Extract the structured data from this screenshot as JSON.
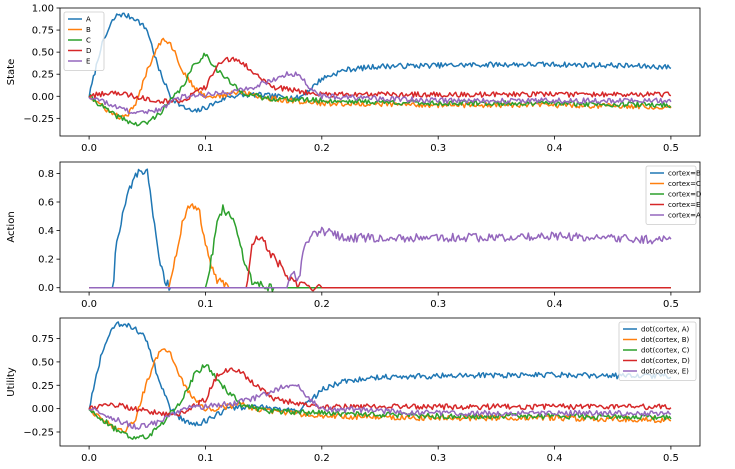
{
  "figure": {
    "colors": [
      "#1f77b4",
      "#ff7f0e",
      "#2ca02c",
      "#d62728",
      "#9467bd"
    ]
  },
  "chart_data": [
    {
      "type": "line",
      "ylabel": "State",
      "xlim": [
        -0.025,
        0.525
      ],
      "ylim": [
        -0.45,
        1.0
      ],
      "xticks": [
        0.0,
        0.1,
        0.2,
        0.3,
        0.4,
        0.5
      ],
      "xtick_labels": [
        "0.0",
        "0.1",
        "0.2",
        "0.3",
        "0.4",
        "0.5"
      ],
      "yticks": [
        -0.25,
        0.0,
        0.25,
        0.5,
        0.75,
        1.0
      ],
      "ytick_labels": [
        "−0.25",
        "0.00",
        "0.25",
        "0.50",
        "0.75",
        "1.00"
      ],
      "legend_position": "upper-left",
      "series": [
        {
          "name": "A",
          "x": [
            0,
            0.01,
            0.02,
            0.025,
            0.03,
            0.04,
            0.05,
            0.06,
            0.07,
            0.08,
            0.09,
            0.1,
            0.12,
            0.14,
            0.16,
            0.18,
            0.19,
            0.2,
            0.22,
            0.25,
            0.3,
            0.35,
            0.4,
            0.45,
            0.5
          ],
          "y": [
            0,
            0.55,
            0.85,
            0.93,
            0.92,
            0.88,
            0.75,
            0.3,
            0.0,
            -0.12,
            -0.18,
            -0.13,
            0.0,
            0.02,
            0.0,
            -0.02,
            0.08,
            0.2,
            0.3,
            0.34,
            0.35,
            0.36,
            0.36,
            0.35,
            0.33
          ]
        },
        {
          "name": "B",
          "x": [
            0,
            0.02,
            0.03,
            0.04,
            0.05,
            0.06,
            0.065,
            0.07,
            0.08,
            0.09,
            0.1,
            0.11,
            0.13,
            0.15,
            0.2,
            0.3,
            0.4,
            0.5
          ],
          "y": [
            0,
            -0.2,
            -0.25,
            -0.1,
            0.3,
            0.6,
            0.65,
            0.6,
            0.3,
            0.1,
            0.0,
            0.0,
            0.05,
            -0.02,
            -0.08,
            -0.1,
            -0.1,
            -0.12
          ]
        },
        {
          "name": "C",
          "x": [
            0,
            0.02,
            0.04,
            0.05,
            0.06,
            0.08,
            0.09,
            0.1,
            0.11,
            0.13,
            0.15,
            0.2,
            0.3,
            0.4,
            0.5
          ],
          "y": [
            0,
            -0.2,
            -0.32,
            -0.3,
            -0.2,
            0.1,
            0.35,
            0.48,
            0.3,
            0.05,
            -0.02,
            -0.05,
            -0.08,
            -0.08,
            -0.1
          ]
        },
        {
          "name": "D",
          "x": [
            0,
            0.02,
            0.04,
            0.06,
            0.08,
            0.1,
            0.11,
            0.12,
            0.13,
            0.14,
            0.16,
            0.2,
            0.3,
            0.4,
            0.5
          ],
          "y": [
            0,
            0.05,
            0.0,
            -0.05,
            -0.05,
            0.1,
            0.35,
            0.42,
            0.4,
            0.28,
            0.1,
            0.02,
            0.02,
            0.02,
            0.02
          ]
        },
        {
          "name": "E",
          "x": [
            0,
            0.02,
            0.04,
            0.06,
            0.08,
            0.1,
            0.12,
            0.14,
            0.16,
            0.17,
            0.18,
            0.19,
            0.2,
            0.3,
            0.4,
            0.5
          ],
          "y": [
            0,
            -0.1,
            -0.2,
            -0.15,
            0.0,
            0.02,
            0.05,
            0.1,
            0.2,
            0.25,
            0.25,
            0.1,
            0.0,
            -0.05,
            -0.05,
            -0.05
          ]
        }
      ]
    },
    {
      "type": "line",
      "ylabel": "Action",
      "xlim": [
        -0.025,
        0.525
      ],
      "ylim": [
        -0.03,
        0.88
      ],
      "xticks": [
        0.0,
        0.1,
        0.2,
        0.3,
        0.4,
        0.5
      ],
      "xtick_labels": [
        "0.0",
        "0.1",
        "0.2",
        "0.3",
        "0.4",
        "0.5"
      ],
      "yticks": [
        0.0,
        0.2,
        0.4,
        0.6,
        0.8
      ],
      "ytick_labels": [
        "0.0",
        "0.2",
        "0.4",
        "0.6",
        "0.8"
      ],
      "legend_position": "upper-right",
      "series": [
        {
          "name": "cortex=B",
          "x": [
            0,
            0.021,
            0.022,
            0.025,
            0.03,
            0.035,
            0.04,
            0.045,
            0.05,
            0.055,
            0.06,
            0.065,
            0.07,
            0.5
          ],
          "y": [
            0,
            0,
            0.25,
            0.35,
            0.55,
            0.7,
            0.78,
            0.82,
            0.8,
            0.5,
            0.2,
            0.05,
            0,
            0
          ]
        },
        {
          "name": "cortex=C",
          "x": [
            0,
            0.068,
            0.07,
            0.075,
            0.08,
            0.085,
            0.09,
            0.095,
            0.1,
            0.105,
            0.11,
            0.12,
            0.5
          ],
          "y": [
            0,
            0,
            0.05,
            0.25,
            0.45,
            0.55,
            0.57,
            0.52,
            0.3,
            0.15,
            0.05,
            0,
            0
          ]
        },
        {
          "name": "cortex=D",
          "x": [
            0,
            0.1,
            0.105,
            0.11,
            0.115,
            0.12,
            0.125,
            0.13,
            0.135,
            0.14,
            0.15,
            0.16,
            0.5
          ],
          "y": [
            0,
            0,
            0.2,
            0.45,
            0.55,
            0.52,
            0.45,
            0.3,
            0.15,
            0.05,
            0.01,
            0,
            0
          ]
        },
        {
          "name": "cortex=E",
          "x": [
            0,
            0.135,
            0.138,
            0.14,
            0.145,
            0.15,
            0.155,
            0.16,
            0.165,
            0.17,
            0.18,
            0.2,
            0.5
          ],
          "y": [
            0,
            0,
            0.15,
            0.3,
            0.35,
            0.32,
            0.25,
            0.2,
            0.15,
            0.08,
            0.02,
            0,
            0
          ]
        },
        {
          "name": "cortex=A",
          "x": [
            0,
            0.17,
            0.172,
            0.175,
            0.18,
            0.185,
            0.19,
            0.2,
            0.22,
            0.25,
            0.3,
            0.35,
            0.4,
            0.45,
            0.5
          ],
          "y": [
            0,
            0,
            0.08,
            0.12,
            0.05,
            0.3,
            0.35,
            0.4,
            0.35,
            0.35,
            0.35,
            0.35,
            0.36,
            0.35,
            0.33
          ]
        }
      ]
    },
    {
      "type": "line",
      "ylabel": "Utility",
      "xlim": [
        -0.025,
        0.525
      ],
      "ylim": [
        -0.4,
        0.97
      ],
      "xticks": [
        0.0,
        0.1,
        0.2,
        0.3,
        0.4,
        0.5
      ],
      "xtick_labels": [
        "0.0",
        "0.1",
        "0.2",
        "0.3",
        "0.4",
        "0.5"
      ],
      "yticks": [
        -0.25,
        0.0,
        0.25,
        0.5,
        0.75
      ],
      "ytick_labels": [
        "−0.25",
        "0.00",
        "0.25",
        "0.50",
        "0.75"
      ],
      "legend_position": "upper-right",
      "series": [
        {
          "name": "dot(cortex, A)",
          "x": [
            0,
            0.01,
            0.02,
            0.025,
            0.03,
            0.04,
            0.05,
            0.06,
            0.07,
            0.08,
            0.09,
            0.1,
            0.12,
            0.14,
            0.16,
            0.18,
            0.19,
            0.2,
            0.22,
            0.25,
            0.3,
            0.35,
            0.4,
            0.45,
            0.5
          ],
          "y": [
            0,
            0.55,
            0.85,
            0.9,
            0.9,
            0.86,
            0.73,
            0.3,
            0.0,
            -0.12,
            -0.18,
            -0.13,
            0.0,
            0.02,
            0.0,
            -0.02,
            0.08,
            0.2,
            0.3,
            0.34,
            0.35,
            0.36,
            0.36,
            0.35,
            0.35
          ]
        },
        {
          "name": "dot(cortex, B)",
          "x": [
            0,
            0.02,
            0.03,
            0.04,
            0.05,
            0.06,
            0.065,
            0.07,
            0.08,
            0.09,
            0.1,
            0.11,
            0.13,
            0.15,
            0.2,
            0.3,
            0.4,
            0.5
          ],
          "y": [
            0,
            -0.2,
            -0.25,
            -0.1,
            0.3,
            0.6,
            0.65,
            0.6,
            0.3,
            0.1,
            0.0,
            0.0,
            0.05,
            -0.02,
            -0.08,
            -0.1,
            -0.1,
            -0.12
          ]
        },
        {
          "name": "dot(cortex, C)",
          "x": [
            0,
            0.02,
            0.04,
            0.05,
            0.06,
            0.08,
            0.09,
            0.1,
            0.11,
            0.13,
            0.15,
            0.2,
            0.3,
            0.4,
            0.5
          ],
          "y": [
            0,
            -0.2,
            -0.32,
            -0.3,
            -0.2,
            0.1,
            0.35,
            0.48,
            0.3,
            0.05,
            -0.02,
            -0.05,
            -0.08,
            -0.08,
            -0.1
          ]
        },
        {
          "name": "dot(cortex, D)",
          "x": [
            0,
            0.02,
            0.04,
            0.06,
            0.08,
            0.1,
            0.11,
            0.12,
            0.13,
            0.14,
            0.16,
            0.2,
            0.3,
            0.4,
            0.5
          ],
          "y": [
            0,
            0.05,
            0.0,
            -0.05,
            -0.05,
            0.1,
            0.35,
            0.42,
            0.4,
            0.28,
            0.1,
            0.02,
            0.02,
            0.02,
            0.02
          ]
        },
        {
          "name": "dot(cortex, E)",
          "x": [
            0,
            0.02,
            0.04,
            0.06,
            0.08,
            0.1,
            0.12,
            0.14,
            0.16,
            0.17,
            0.18,
            0.19,
            0.2,
            0.3,
            0.4,
            0.5
          ],
          "y": [
            0,
            -0.1,
            -0.2,
            -0.15,
            0.0,
            0.02,
            0.05,
            0.1,
            0.2,
            0.25,
            0.25,
            0.1,
            0.0,
            -0.05,
            -0.05,
            -0.05
          ]
        }
      ]
    }
  ]
}
